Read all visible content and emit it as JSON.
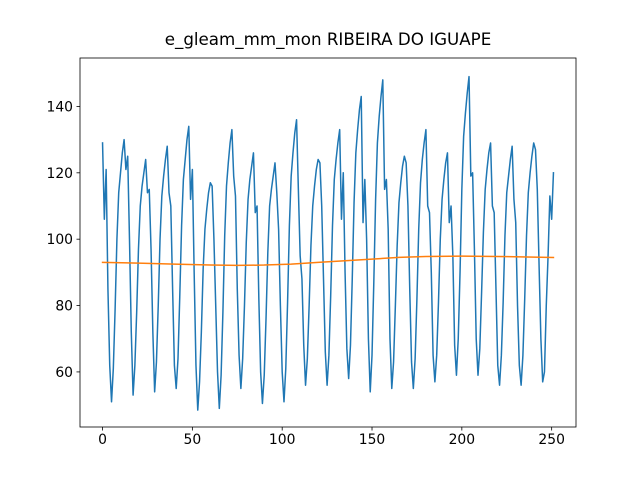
{
  "chart_data": {
    "type": "line",
    "title": "e_gleam_mm_mon RIBEIRA DO IGUAPE",
    "xlim": [
      -12.55,
      263.55
    ],
    "ylim": [
      43.4,
      154.6
    ],
    "xticks": [
      0,
      50,
      100,
      150,
      200,
      250
    ],
    "yticks": [
      60,
      80,
      100,
      120,
      140
    ],
    "series": [
      {
        "color": "#1f77b4",
        "values": [
          129,
          106,
          121,
          85,
          62,
          51,
          61,
          79,
          100,
          114,
          120,
          126,
          130,
          121,
          125,
          100,
          72,
          53,
          62,
          78,
          97,
          110,
          116,
          120,
          124,
          114,
          115,
          97,
          72,
          54,
          63,
          80,
          100,
          113,
          119,
          124,
          128,
          114,
          110,
          85,
          62,
          55,
          64,
          83,
          104,
          118,
          124,
          130,
          134,
          112,
          121,
          90,
          62,
          48.5,
          57,
          72,
          91,
          103,
          109,
          114,
          117,
          116,
          100,
          80,
          60,
          49,
          59,
          78,
          101,
          116,
          123,
          129,
          133,
          119,
          113,
          85,
          65,
          55,
          64,
          80,
          99,
          112,
          118,
          122,
          126,
          108,
          110,
          82,
          60,
          50.5,
          59,
          76,
          96,
          110,
          115,
          119,
          123,
          114,
          103,
          80,
          60,
          51,
          61,
          81,
          104,
          119,
          126,
          132,
          136,
          115,
          95,
          88,
          68,
          56,
          64,
          80,
          98,
          110,
          116,
          121,
          124,
          123,
          110,
          88,
          66,
          56,
          65,
          83,
          104,
          118,
          124,
          129,
          133,
          106,
          120,
          90,
          67,
          58,
          68,
          88,
          111,
          126,
          133,
          139,
          143,
          105,
          118,
          100,
          70,
          54,
          65,
          87,
          112,
          129,
          137,
          143,
          148,
          115,
          118,
          103,
          70,
          55,
          63,
          80,
          98,
          111,
          117,
          122,
          125,
          123,
          110,
          85,
          63,
          55,
          64,
          82,
          103,
          117,
          124,
          129,
          133,
          110,
          108,
          90,
          65,
          57,
          65,
          81,
          100,
          112,
          118,
          123,
          126,
          105,
          110,
          95,
          68,
          59,
          70,
          90,
          115,
          131,
          138,
          144,
          149,
          119,
          120,
          97,
          70,
          59,
          67,
          84,
          102,
          115,
          121,
          126,
          129,
          110,
          108,
          85,
          62,
          56,
          65,
          81,
          101,
          114,
          119,
          124,
          128,
          112,
          105,
          80,
          62,
          56,
          65,
          82,
          101,
          114,
          120,
          125,
          129,
          127,
          115,
          92,
          70,
          57,
          60,
          80,
          95,
          113,
          106,
          120
        ]
      },
      {
        "color": "#ff7f0e",
        "x": [
          0,
          20,
          40,
          60,
          75,
          90,
          105,
          120,
          135,
          150,
          165,
          180,
          200,
          220,
          240,
          251
        ],
        "values": [
          93.0,
          92.8,
          92.5,
          92.2,
          92.1,
          92.2,
          92.5,
          93.0,
          93.5,
          94.0,
          94.5,
          94.8,
          94.9,
          94.8,
          94.6,
          94.5
        ]
      }
    ]
  }
}
